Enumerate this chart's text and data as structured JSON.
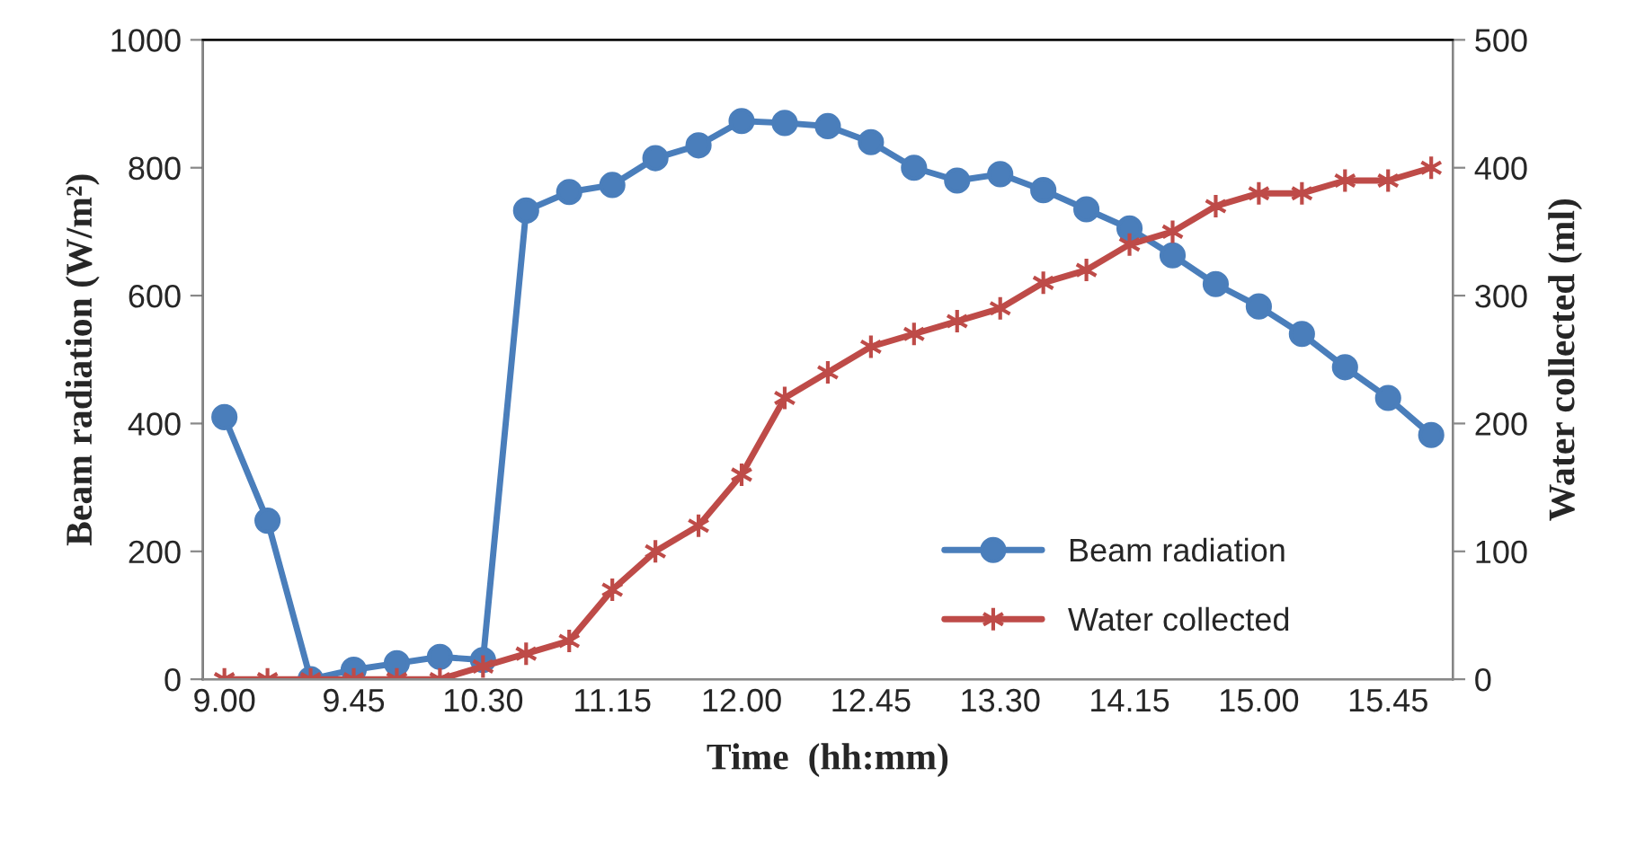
{
  "chart_data": {
    "type": "line",
    "xlabel": "Time  (hh:mm)",
    "ylabel": "Beam radiation (W/m²)",
    "y2label": "Water collected (ml)",
    "categories": [
      "9.00",
      null,
      null,
      "9.45",
      null,
      null,
      "10.30",
      null,
      null,
      "11.15",
      null,
      null,
      "12.00",
      null,
      null,
      "12.45",
      null,
      null,
      "13.30",
      null,
      null,
      "14.15",
      null,
      null,
      "15.00",
      null,
      null,
      "15.45",
      null
    ],
    "series": [
      {
        "name": "Beam radiation",
        "color": "#4a7ebb",
        "marker": "circle",
        "values": [
          410,
          248,
          0,
          15,
          25,
          35,
          30,
          733,
          762,
          773,
          815,
          835,
          873,
          870,
          865,
          840,
          800,
          780,
          790,
          765,
          735,
          705,
          663,
          618,
          583,
          540,
          488,
          440,
          382
        ]
      },
      {
        "name": "Water collected",
        "color": "#be4b48",
        "marker": "cross",
        "axis": "y2",
        "values": [
          0,
          0,
          0,
          0,
          0,
          0,
          10,
          20,
          30,
          70,
          100,
          120,
          160,
          220,
          240,
          260,
          270,
          280,
          290,
          310,
          320,
          340,
          350,
          370,
          380,
          380,
          390,
          390,
          400
        ]
      }
    ],
    "ylim": [
      0,
      1000
    ],
    "yticks": [
      0,
      200,
      400,
      600,
      800,
      1000
    ],
    "y2lim": [
      0,
      500
    ],
    "y2ticks": [
      0,
      100,
      200,
      300,
      400,
      500
    ],
    "grid": false,
    "legend": "bottom right",
    "line_style": "solid"
  }
}
